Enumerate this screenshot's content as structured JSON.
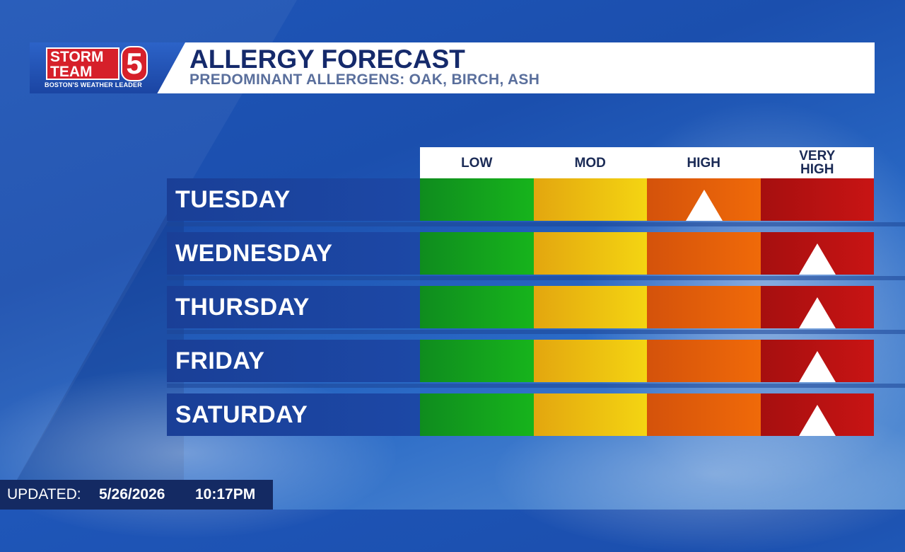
{
  "brand": {
    "logo_line1": "STORM",
    "logo_line2": "TEAM",
    "logo_number": "5",
    "tagline": "BOSTON'S WEATHER LEADER",
    "accent_red": "#d6202a",
    "navy": "#152a6b"
  },
  "header": {
    "title": "ALLERGY FORECAST",
    "subtitle": "PREDOMINANT ALLERGENS: OAK, BIRCH, ASH"
  },
  "levels": [
    {
      "label": "LOW",
      "color": "#17b41c"
    },
    {
      "label": "MOD",
      "color": "#f4d512"
    },
    {
      "label": "HIGH",
      "color": "#f06a09"
    },
    {
      "label": "VERY HIGH",
      "color": "#c81414"
    }
  ],
  "forecast": [
    {
      "day": "TUESDAY",
      "level": "HIGH"
    },
    {
      "day": "WEDNESDAY",
      "level": "VERY HIGH"
    },
    {
      "day": "THURSDAY",
      "level": "VERY HIGH"
    },
    {
      "day": "FRIDAY",
      "level": "VERY HIGH"
    },
    {
      "day": "SATURDAY",
      "level": "VERY HIGH"
    }
  ],
  "updated": {
    "label": "UPDATED:",
    "date": "5/26/2026",
    "time": "10:17PM"
  },
  "marker_icon": "up-triangle-icon"
}
